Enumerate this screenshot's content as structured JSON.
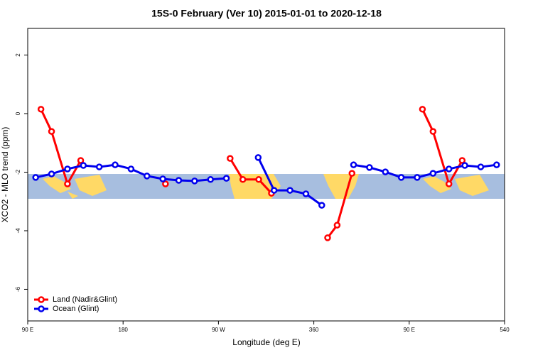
{
  "chart_data": {
    "type": "line",
    "title": "15S-0 February (Ver 10)   2015-01-01 to 2020-12-18",
    "x_label": "Longitude (deg E)",
    "y_label": "XCO2 - MLO trend (ppm)",
    "xlim": [
      90,
      540
    ],
    "xticks": [
      {
        "value": 90,
        "label": "90 E"
      },
      180,
      {
        "value": 270,
        "label": "90 W"
      },
      360,
      {
        "value": 450,
        "label": "90 E"
      },
      540
    ],
    "ylim": [
      -7.08,
      2.91
    ],
    "yticks": [
      2,
      0,
      -2,
      -4,
      -6
    ],
    "legend": "bottom-left",
    "series": [
      {
        "name": "Land (Nadir&Glint)",
        "color": "#ff0000",
        "x": [
          102.5,
          112.5,
          127.5,
          140,
          180,
          220,
          250,
          281,
          293,
          308,
          320,
          340,
          373,
          382,
          396,
          430,
          462.5,
          472.5,
          487.5,
          500
        ],
        "values": [
          0.15,
          -0.61,
          -2.4,
          -1.6,
          null,
          -2.4,
          null,
          -1.53,
          -2.25,
          -2.25,
          -2.72,
          null,
          -4.24,
          -3.81,
          -2.04,
          null,
          0.15,
          -0.61,
          -2.4,
          -1.6
        ]
      },
      {
        "name": "Ocean (Glint)",
        "color": "#0000ee",
        "x": [
          97.5,
          112.5,
          127.5,
          142.5,
          157.5,
          172.5,
          187.5,
          202.5,
          217.5,
          232.5,
          247.5,
          262.5,
          277.5,
          292.5,
          307.5,
          322.5,
          337.5,
          352.5,
          367.5,
          382.5,
          397.5,
          412.5,
          427.5,
          442.5,
          457.5,
          472.5,
          487.5,
          502.5,
          517.5,
          532.5
        ],
        "values": [
          -2.18,
          -2.06,
          -1.89,
          -1.77,
          -1.82,
          -1.75,
          -1.89,
          -2.13,
          -2.23,
          -2.28,
          -2.3,
          -2.25,
          -2.21,
          null,
          -1.5,
          -2.62,
          -2.62,
          -2.74,
          -3.13,
          null,
          -1.75,
          -1.84,
          -1.99,
          -2.18,
          -2.18,
          -2.04,
          -1.89,
          -1.77,
          -1.82,
          -1.75
        ]
      }
    ]
  }
}
